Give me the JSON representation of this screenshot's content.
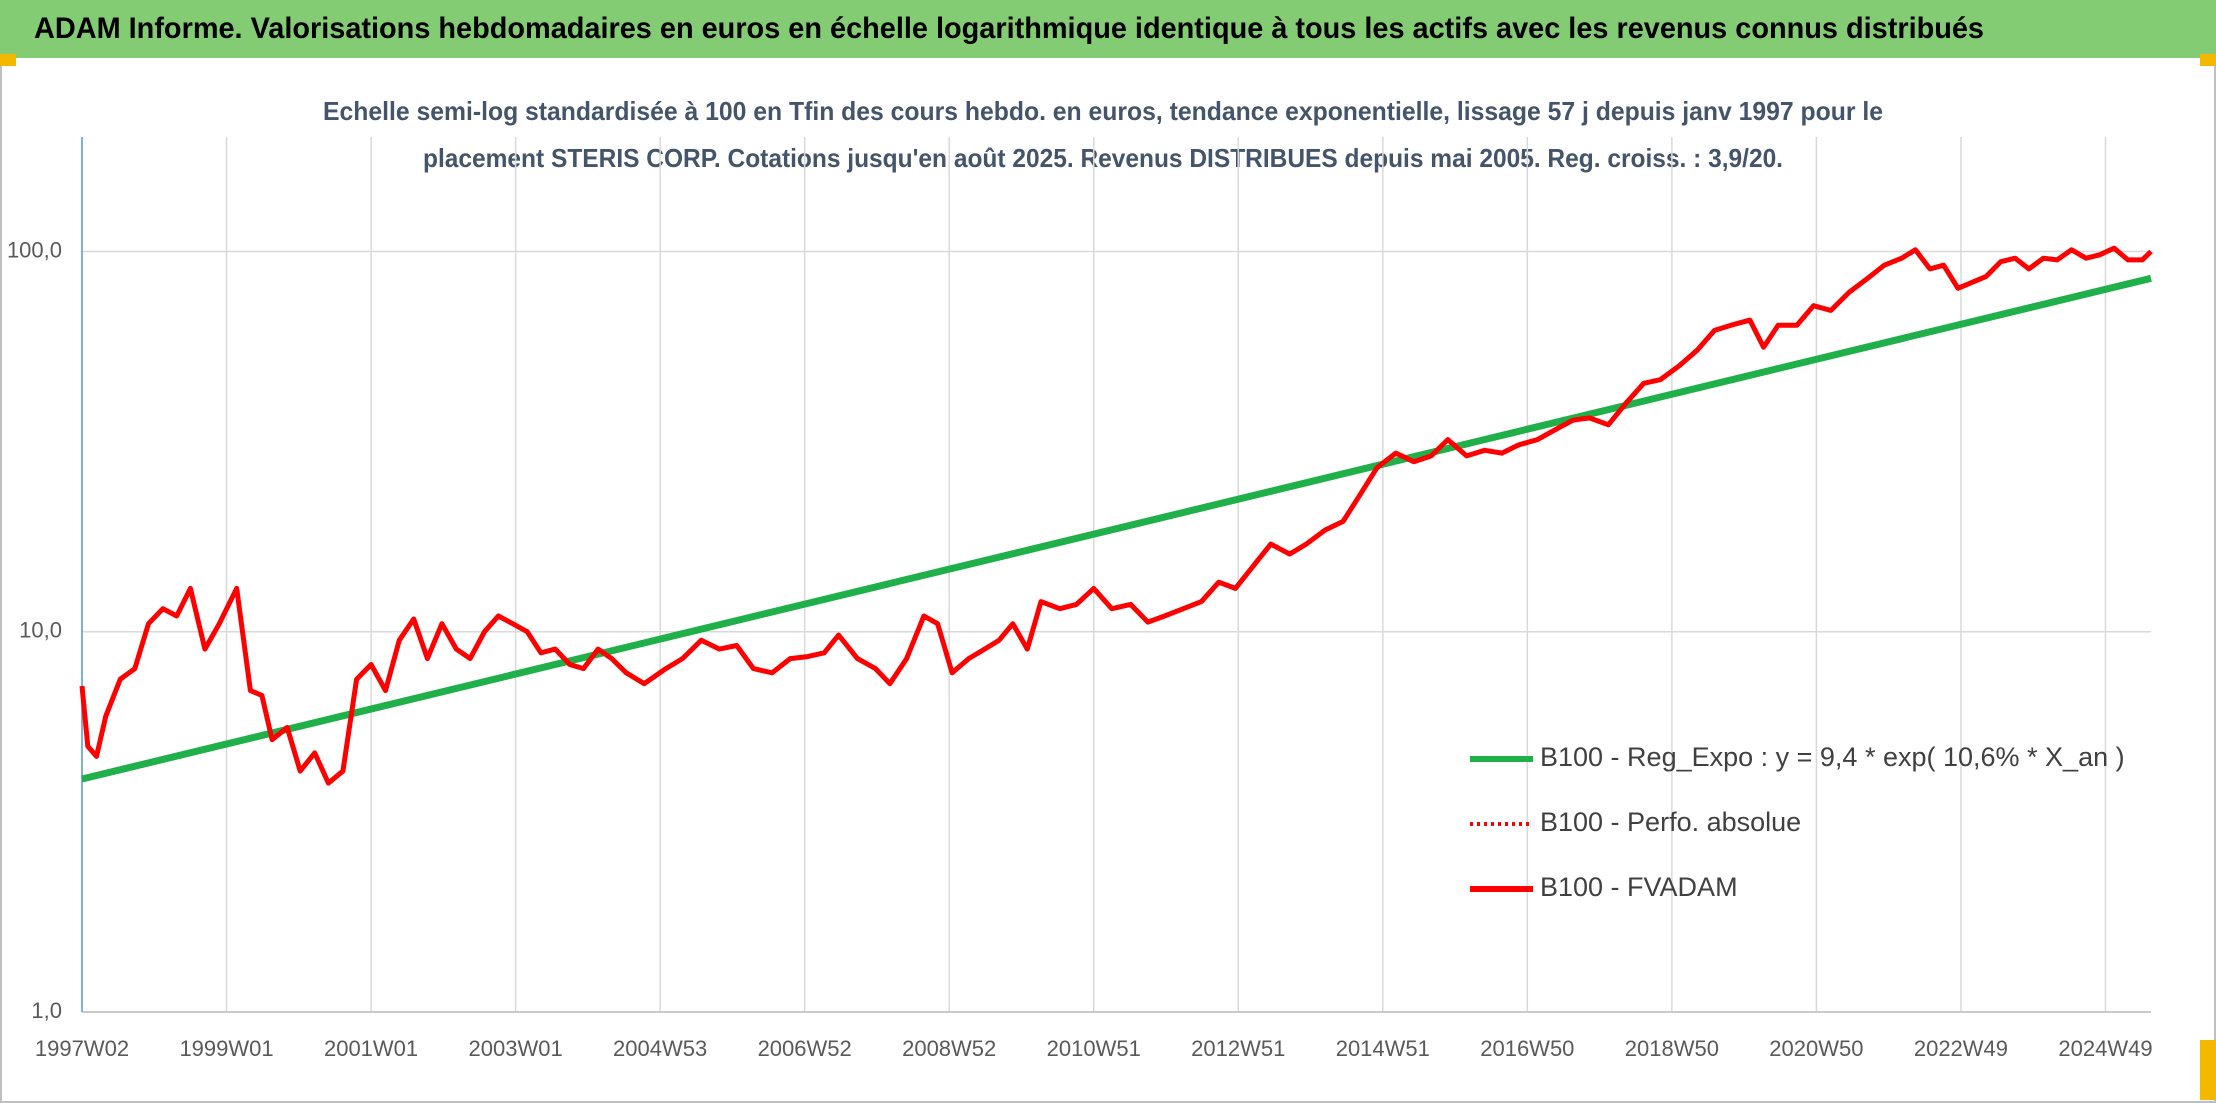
{
  "chart_data": {
    "type": "line",
    "title": "ADAM Informe. Valorisations hebdomadaires en euros en échelle logarithmique identique à tous les actifs avec les revenus connus distribués",
    "subtitle": [
      "Echelle semi-log standardisée à 100 en Tfin des cours hebdo. en euros, tendance exponentielle, lissage 57 j depuis janv 1997 pour le",
      "placement STERIS CORP. Cotations jusqu'en août 2025. Revenus DISTRIBUES depuis mai 2005. Reg. croiss. : 3,9/20."
    ],
    "log_scale": true,
    "grid": true,
    "legend": "lower right",
    "xlim": [
      1997.0,
      2025.63
    ],
    "xticks": [
      {
        "value": 1997,
        "label": "1997W02"
      },
      {
        "value": 1999,
        "label": "1999W01"
      },
      {
        "value": 2001,
        "label": "2001W01"
      },
      {
        "value": 2003,
        "label": "2003W01"
      },
      {
        "value": 2005,
        "label": "2004W53"
      },
      {
        "value": 2007,
        "label": "2006W52"
      },
      {
        "value": 2009,
        "label": "2008W52"
      },
      {
        "value": 2011,
        "label": "2010W51"
      },
      {
        "value": 2013,
        "label": "2012W51"
      },
      {
        "value": 2015,
        "label": "2014W51"
      },
      {
        "value": 2017,
        "label": "2016W50"
      },
      {
        "value": 2019,
        "label": "2018W50"
      },
      {
        "value": 2021,
        "label": "2020W50"
      },
      {
        "value": 2023,
        "label": "2022W49"
      },
      {
        "value": 2025,
        "label": "2024W49"
      }
    ],
    "ylim": [
      1,
      200
    ],
    "yticks": [
      {
        "value": 1,
        "label": "1,0"
      },
      {
        "value": 10,
        "label": "10,0"
      },
      {
        "value": 100,
        "label": "100,0"
      }
    ],
    "series": [
      {
        "name": "B100 - Reg_Expo : y = 9,4 * exp( 10,6% *  X_an )",
        "color": "#1fb04a",
        "dash": "solid",
        "x": [
          1997.0,
          2025.63
        ],
        "values": [
          4.1,
          85
        ]
      },
      {
        "name": "B100 - Perfo. absolue",
        "color": "#ff0000",
        "dash": "dotted",
        "x": [],
        "values": []
      },
      {
        "name": "B100 - FVADAM",
        "color": "#ff0000",
        "dash": "solid",
        "x": [
          1997.0,
          1997.08,
          1997.2,
          1997.33,
          1997.53,
          1997.73,
          1997.92,
          1998.12,
          1998.31,
          1998.5,
          1998.7,
          1998.9,
          1999.14,
          1999.33,
          1999.49,
          1999.63,
          1999.84,
          2000.02,
          2000.22,
          2000.41,
          2000.61,
          2000.8,
          2001.0,
          2001.2,
          2001.39,
          2001.59,
          2001.78,
          2001.98,
          2002.18,
          2002.37,
          2002.57,
          2002.76,
          2002.96,
          2003.16,
          2003.35,
          2003.55,
          2003.75,
          2003.94,
          2004.14,
          2004.33,
          2004.53,
          2004.78,
          2005.08,
          2005.31,
          2005.57,
          2005.82,
          2006.06,
          2006.29,
          2006.55,
          2006.8,
          2007.04,
          2007.27,
          2007.47,
          2007.73,
          2007.98,
          2008.18,
          2008.41,
          2008.65,
          2008.84,
          2009.04,
          2009.27,
          2009.49,
          2009.69,
          2009.88,
          2010.08,
          2010.27,
          2010.53,
          2010.76,
          2011.0,
          2011.25,
          2011.51,
          2011.75,
          2011.98,
          2012.24,
          2012.49,
          2012.73,
          2012.96,
          2013.22,
          2013.45,
          2013.71,
          2013.94,
          2014.2,
          2014.45,
          2014.69,
          2014.92,
          2015.18,
          2015.43,
          2015.67,
          2015.9,
          2016.16,
          2016.41,
          2016.65,
          2016.88,
          2017.14,
          2017.39,
          2017.63,
          2017.86,
          2018.12,
          2018.37,
          2018.61,
          2018.84,
          2019.1,
          2019.35,
          2019.59,
          2019.82,
          2020.08,
          2020.27,
          2020.47,
          2020.73,
          2020.96,
          2021.2,
          2021.45,
          2021.71,
          2021.94,
          2022.18,
          2022.37,
          2022.57,
          2022.76,
          2022.96,
          2023.16,
          2023.35,
          2023.55,
          2023.75,
          2023.94,
          2024.14,
          2024.33,
          2024.53,
          2024.73,
          2024.92,
          2025.12,
          2025.31,
          2025.51,
          2025.63
        ],
        "values": [
          7.2,
          5.0,
          4.7,
          6.0,
          7.5,
          8.0,
          10.5,
          11.5,
          11.0,
          13.0,
          9.0,
          10.5,
          13.0,
          7.0,
          6.8,
          5.2,
          5.6,
          4.3,
          4.8,
          4.0,
          4.3,
          7.5,
          8.2,
          7.0,
          9.5,
          10.8,
          8.5,
          10.5,
          9.0,
          8.5,
          10.0,
          11.0,
          10.5,
          10.0,
          8.8,
          9.0,
          8.2,
          8.0,
          9.0,
          8.5,
          7.8,
          7.3,
          8.0,
          8.5,
          9.5,
          9.0,
          9.2,
          8.0,
          7.8,
          8.5,
          8.6,
          8.8,
          9.8,
          8.5,
          8.0,
          7.3,
          8.5,
          11.0,
          10.5,
          7.8,
          8.5,
          9.0,
          9.5,
          10.5,
          9.0,
          12.0,
          11.5,
          11.8,
          13.0,
          11.5,
          11.8,
          10.6,
          11.0,
          11.5,
          12.0,
          13.5,
          13.0,
          15.0,
          17.0,
          16.0,
          17.0,
          18.5,
          19.5,
          23.0,
          27.0,
          29.5,
          28.0,
          29.0,
          32.0,
          29.0,
          30.0,
          29.5,
          31.0,
          32.0,
          34.0,
          36.0,
          36.5,
          35.0,
          40.0,
          45.0,
          46.0,
          50.0,
          55.0,
          62.0,
          64.0,
          66.0,
          56.0,
          64.0,
          64.0,
          72.0,
          70.0,
          78.0,
          85.0,
          92.0,
          96.0,
          101.0,
          90.0,
          92.0,
          80.0,
          83.0,
          86.0,
          94.0,
          96.0,
          90.0,
          96.0,
          95.0,
          101.0,
          96.0,
          98.0,
          102.0,
          95.0,
          95.0,
          100.0
        ]
      }
    ]
  }
}
